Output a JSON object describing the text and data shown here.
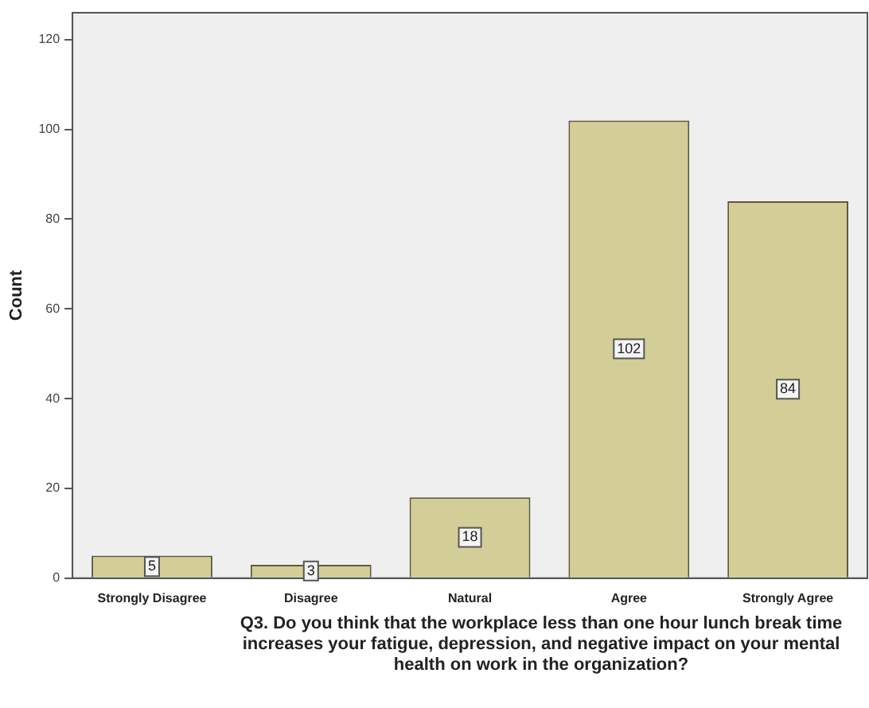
{
  "chart_data": {
    "type": "bar",
    "xlabel": "Q3. Do you think that the workplace less than one hour lunch break time increases your fatigue, depression, and negative impact on your mental health on work in the organization?",
    "ylabel": "Count",
    "categories": [
      "Strongly Disagree",
      "Disagree",
      "Natural",
      "Agree",
      "Strongly Agree"
    ],
    "values": [
      5,
      3,
      18,
      102,
      84
    ],
    "color": "#d3ce97",
    "ylim": [
      0,
      126
    ],
    "yticks": [
      0,
      20,
      40,
      60,
      80,
      100,
      120
    ],
    "grid": false,
    "legend": false,
    "data_labels": true
  }
}
